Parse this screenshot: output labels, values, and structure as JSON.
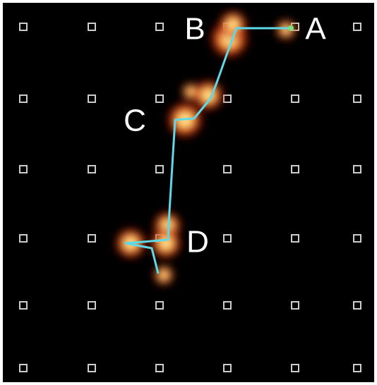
{
  "labels": [
    "A",
    "B",
    "C",
    "D"
  ]
}
